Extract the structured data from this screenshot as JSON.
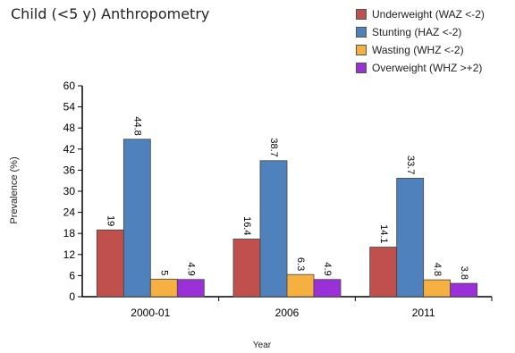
{
  "chart_data": {
    "type": "bar",
    "title": "Child (<5 y) Anthropometry",
    "xlabel": "Year",
    "ylabel": "Prevalence (%)",
    "categories": [
      "2000-01",
      "2006",
      "2011"
    ],
    "ylim": [
      0,
      60
    ],
    "yticks": [
      "0",
      "6",
      "12",
      "18",
      "24",
      "30",
      "36",
      "42",
      "48",
      "54",
      "60"
    ],
    "legend_position": "top-right",
    "grid": false,
    "series": [
      {
        "name": "Underweight (WAZ <-2)",
        "color": "#c0504d",
        "values": [
          19,
          16.4,
          14.1
        ],
        "labels": [
          "19",
          "16.4",
          "14.1"
        ]
      },
      {
        "name": "Stunting (HAZ <-2)",
        "color": "#4f81bd",
        "values": [
          44.8,
          38.7,
          33.7
        ],
        "labels": [
          "44.8",
          "38.7",
          "33.7"
        ]
      },
      {
        "name": "Wasting (WHZ <-2)",
        "color": "#f5b041",
        "values": [
          5,
          6.3,
          4.8
        ],
        "labels": [
          "5",
          "6.3",
          "4.8"
        ]
      },
      {
        "name": "Overweight (WHZ >+2)",
        "color": "#9b30d9",
        "values": [
          4.9,
          4.9,
          3.8
        ],
        "labels": [
          "4.9",
          "4.9",
          "3.8"
        ]
      }
    ]
  }
}
